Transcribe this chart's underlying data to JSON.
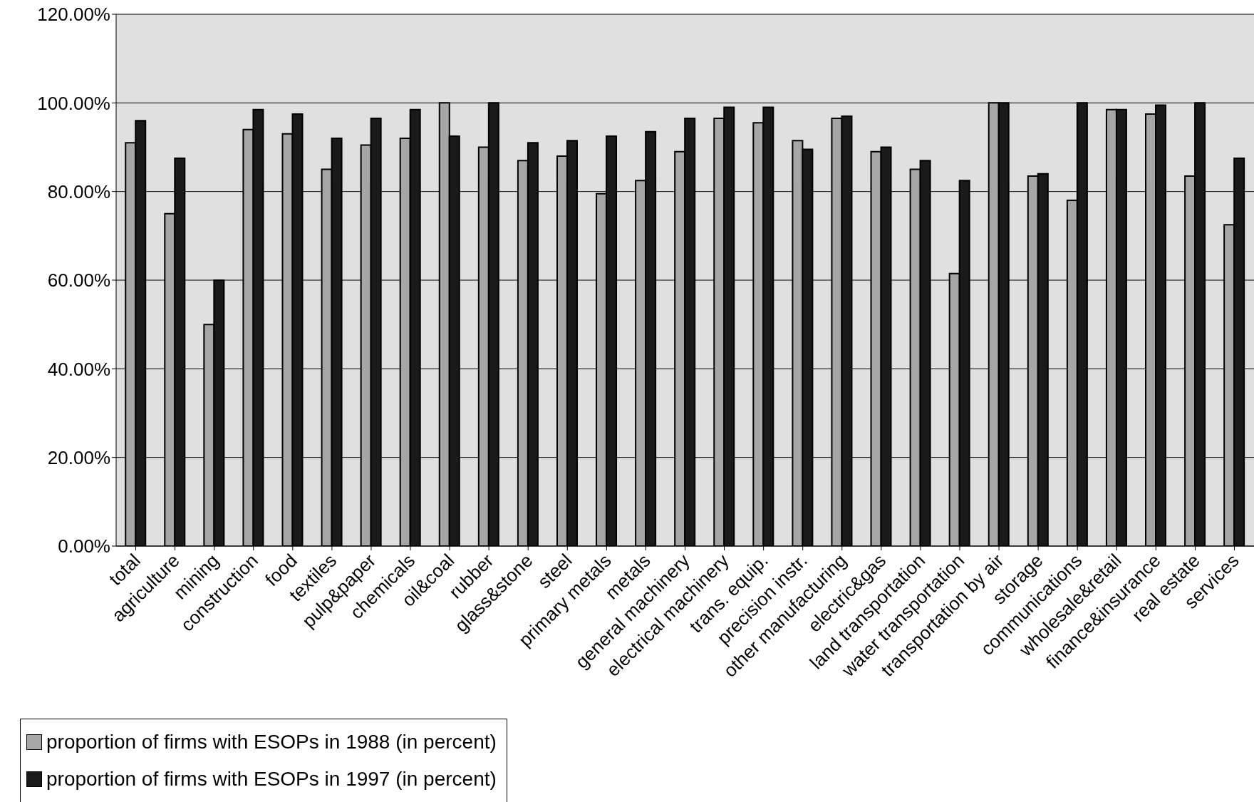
{
  "chart_data": {
    "type": "bar",
    "categories": [
      "total",
      "agriculture",
      "mining",
      "construction",
      "food",
      "textiles",
      "pulp&paper",
      "chemicals",
      "oil&coal",
      "rubber",
      "glass&stone",
      "steel",
      "primary metals",
      "metals",
      "general machinery",
      "electrical machinery",
      "trans. equip.",
      "precision instr.",
      "other manufacturing",
      "electric&gas",
      "land transportation",
      "water transportation",
      "transportation by air",
      "storage",
      "communications",
      "wholesale&retail",
      "finance&insurance",
      "real estate",
      "services"
    ],
    "series": [
      {
        "name": "proportion of firms with ESOPs in 1988 (in percent)",
        "color": "#a6a6a6",
        "values": [
          91,
          75,
          50,
          94,
          93,
          85,
          90.5,
          92,
          100,
          90,
          87,
          88,
          79.5,
          82.5,
          89,
          96.5,
          95.5,
          91.5,
          96.5,
          89,
          85,
          61.5,
          100,
          83.5,
          78,
          98.5,
          97.5,
          83.5,
          72.5
        ]
      },
      {
        "name": "proportion of firms with ESOPs in 1997 (in percent)",
        "color": "#1a1a1a",
        "values": [
          96,
          87.5,
          60,
          98.5,
          97.5,
          92,
          96.5,
          98.5,
          92.5,
          100,
          91,
          91.5,
          92.5,
          93.5,
          96.5,
          99,
          99,
          89.5,
          97,
          90,
          87,
          82.5,
          100,
          84,
          100,
          98.5,
          99.5,
          100,
          87.5
        ]
      }
    ],
    "ylim": [
      0,
      120
    ],
    "yticks": [
      {
        "value": 0,
        "label": "0.00%"
      },
      {
        "value": 20,
        "label": "20.00%"
      },
      {
        "value": 40,
        "label": "40.00%"
      },
      {
        "value": 60,
        "label": "60.00%"
      },
      {
        "value": 80,
        "label": "80.00%"
      },
      {
        "value": 100,
        "label": "100.00%"
      },
      {
        "value": 120,
        "label": "120.00%"
      }
    ],
    "grid": "y",
    "legend": "bottom left"
  }
}
